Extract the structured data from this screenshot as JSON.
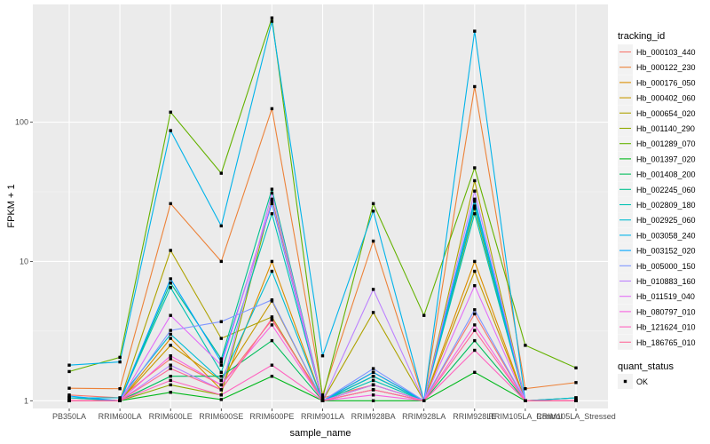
{
  "chart_data": {
    "type": "line",
    "xlabel": "sample_name",
    "ylabel": "FPKM + 1",
    "y_scale": "log10",
    "ylim": [
      0.88,
      700
    ],
    "y_ticks": [
      1,
      10,
      100
    ],
    "y_tick_labels": [
      "1",
      "10",
      "100"
    ],
    "grid": true,
    "legend_placement": "right",
    "categories": [
      "PB350LA",
      "RRIM600LA",
      "RRIM600LE",
      "RRIM600SE",
      "RRIM600PE",
      "RRIM901LA",
      "RRIM928BA",
      "RRIM928LA",
      "RRIM928LE",
      "RRIM105LA_Control",
      "RRIM105LA_Stressed"
    ],
    "legend_title": "tracking_id",
    "series": [
      {
        "name": "Hb_000103_440",
        "color": "#F8766D",
        "values": [
          1.1,
          1.05,
          2.0,
          1.3,
          3.8,
          1.05,
          1.3,
          1.0,
          4.2,
          1.0,
          1.0
        ]
      },
      {
        "name": "Hb_000122_230",
        "color": "#EC8239",
        "values": [
          1.23,
          1.22,
          26,
          10,
          125,
          1.1,
          14,
          1.0,
          180,
          1.22,
          1.35
        ]
      },
      {
        "name": "Hb_000176_050",
        "color": "#DB8E00",
        "values": [
          1.0,
          1.0,
          2.8,
          1.2,
          10,
          1.0,
          1.6,
          1.0,
          10,
          1.0,
          1.0
        ]
      },
      {
        "name": "Hb_000402_060",
        "color": "#C79800",
        "values": [
          1.05,
          1.0,
          2.5,
          1.4,
          5.2,
          1.0,
          1.5,
          1.0,
          8.5,
          1.0,
          1.05
        ]
      },
      {
        "name": "Hb_000654_020",
        "color": "#AEA200",
        "values": [
          1.0,
          1.0,
          12,
          2.8,
          4.0,
          1.0,
          4.3,
          1.0,
          38,
          1.0,
          1.0
        ]
      },
      {
        "name": "Hb_001140_290",
        "color": "#8FAA00",
        "values": [
          1.0,
          1.0,
          1.3,
          1.1,
          28,
          1.0,
          1.2,
          1.0,
          24,
          1.0,
          1.0
        ]
      },
      {
        "name": "Hb_001289_070",
        "color": "#64B200",
        "values": [
          1.62,
          2.05,
          118,
          43,
          560,
          1.05,
          26,
          4.1,
          47,
          2.5,
          1.72
        ]
      },
      {
        "name": "Hb_001397_020",
        "color": "#00B81B",
        "values": [
          1.0,
          1.0,
          1.15,
          1.02,
          1.5,
          1.0,
          1.0,
          1.0,
          1.6,
          1.0,
          1.0
        ]
      },
      {
        "name": "Hb_001408_200",
        "color": "#00BD5C",
        "values": [
          1.0,
          1.0,
          1.5,
          1.5,
          2.7,
          1.0,
          1.3,
          1.0,
          2.7,
          1.0,
          1.0
        ]
      },
      {
        "name": "Hb_002245_060",
        "color": "#00C08E",
        "values": [
          1.0,
          1.0,
          7.0,
          2.0,
          33,
          1.0,
          1.5,
          1.0,
          27,
          1.0,
          1.0
        ]
      },
      {
        "name": "Hb_002809_180",
        "color": "#00C1B2",
        "values": [
          1.05,
          1.0,
          6.5,
          1.6,
          22,
          1.0,
          1.4,
          1.0,
          22,
          1.0,
          1.05
        ]
      },
      {
        "name": "Hb_002925_060",
        "color": "#00BCD1",
        "values": [
          1.05,
          1.05,
          3.0,
          1.4,
          8.5,
          1.0,
          1.5,
          1.0,
          25,
          1.0,
          1.05
        ]
      },
      {
        "name": "Hb_003058_240",
        "color": "#00B3EA",
        "values": [
          1.8,
          1.9,
          87,
          18,
          530,
          2.1,
          23,
          1.0,
          450,
          1.0,
          1.0
        ]
      },
      {
        "name": "Hb_003152_020",
        "color": "#00A5FF",
        "values": [
          1.08,
          1.0,
          7.5,
          1.9,
          26,
          1.0,
          1.6,
          1.0,
          28,
          1.0,
          1.0
        ]
      },
      {
        "name": "Hb_005000_150",
        "color": "#7F96FF",
        "values": [
          1.0,
          1.0,
          3.2,
          3.7,
          5.3,
          1.0,
          1.7,
          1.0,
          4.5,
          1.0,
          1.0
        ]
      },
      {
        "name": "Hb_010883_160",
        "color": "#BC81FF",
        "values": [
          1.0,
          1.0,
          1.8,
          1.2,
          31,
          1.0,
          6.3,
          1.0,
          32,
          1.0,
          1.0
        ]
      },
      {
        "name": "Hb_011519_040",
        "color": "#E26EF7",
        "values": [
          1.0,
          1.0,
          4.1,
          1.8,
          27,
          1.0,
          1.3,
          1.0,
          6.7,
          1.0,
          1.0
        ]
      },
      {
        "name": "Hb_080797_010",
        "color": "#F863DF",
        "values": [
          1.0,
          1.0,
          2.1,
          1.3,
          3.5,
          1.0,
          1.1,
          1.0,
          3.5,
          1.0,
          1.0
        ]
      },
      {
        "name": "Hb_121624_010",
        "color": "#FF62BF",
        "values": [
          1.0,
          1.0,
          1.4,
          1.1,
          1.8,
          1.0,
          1.2,
          1.0,
          2.3,
          1.0,
          1.0
        ]
      },
      {
        "name": "Hb_186765_010",
        "color": "#FF6A98",
        "values": [
          1.0,
          1.0,
          1.7,
          1.2,
          3.9,
          1.0,
          1.2,
          1.0,
          3.2,
          1.0,
          1.0
        ]
      }
    ],
    "shape_legend": {
      "title": "quant_status",
      "items": [
        "OK"
      ]
    }
  }
}
